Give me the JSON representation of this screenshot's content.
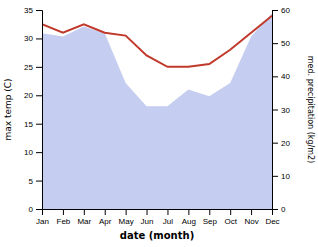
{
  "chart_data": {
    "type": "line",
    "xlabel": "date (month)",
    "ylabel": "max temp (C)",
    "y2label": "med. precipitation (kg/m2)",
    "categories": [
      "Jan",
      "Feb",
      "Mar",
      "Apr",
      "May",
      "Jun",
      "Jul",
      "Aug",
      "Sep",
      "Oct",
      "Nov",
      "Dec"
    ],
    "series": [
      {
        "type": "area",
        "axis": "y2",
        "color": "#c5cdf0",
        "values": [
          53,
          52,
          55,
          53,
          38,
          31,
          31,
          36,
          34,
          38,
          52,
          59
        ]
      },
      {
        "type": "line",
        "color": "#c0392b",
        "values": [
          32.5,
          31.0,
          32.5,
          31.0,
          30.5,
          27.0,
          25.0,
          25.0,
          25.5,
          28.0,
          31.0,
          34.0
        ]
      }
    ],
    "ylim": [
      0,
      35
    ],
    "yticks": [
      0,
      5,
      10,
      15,
      20,
      25,
      30,
      35
    ],
    "y2lim": [
      0,
      60
    ],
    "y2ticks": [
      0,
      10,
      20,
      30,
      40,
      50,
      60
    ],
    "grid": false
  }
}
